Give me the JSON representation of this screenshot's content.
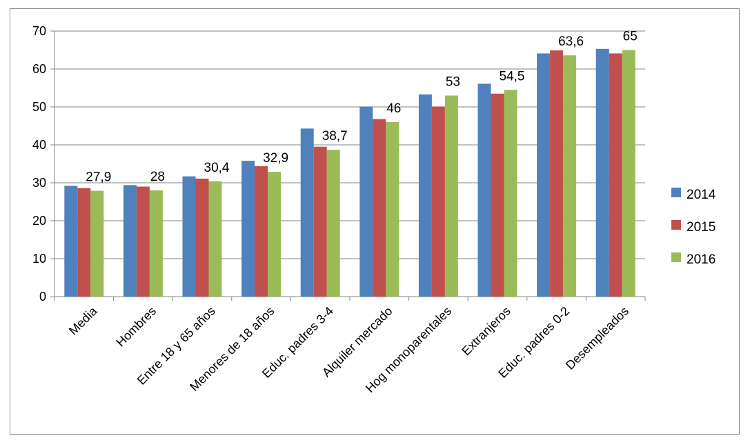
{
  "chart_data": {
    "type": "bar",
    "categories": [
      "Media",
      "Hombres",
      "Entre 18 y 65 años",
      "Menores de 18 años",
      "Educ. padres 3-4",
      "Alquiler mercado",
      "Hog monoparentales",
      "Extranjeros",
      "Educ. padres 0-2",
      "Desempleados"
    ],
    "series": [
      {
        "name": "2014",
        "color": "#4F81BD",
        "values": [
          29.2,
          29.4,
          31.7,
          35.8,
          44.3,
          50.1,
          53.3,
          56.1,
          64.1,
          65.3
        ]
      },
      {
        "name": "2015",
        "color": "#C0504D",
        "values": [
          28.6,
          29.0,
          31.1,
          34.4,
          39.5,
          46.8,
          50.1,
          53.5,
          64.9,
          64.1
        ]
      },
      {
        "name": "2016",
        "color": "#9BBB59",
        "values": [
          27.9,
          28.0,
          30.4,
          32.9,
          38.7,
          46.0,
          53.0,
          54.5,
          63.6,
          65.0
        ]
      }
    ],
    "data_labels": [
      "27,9",
      "28",
      "30,4",
      "32,9",
      "38,7",
      "46",
      "53",
      "54,5",
      "63,6",
      "65"
    ],
    "yticks": [
      "0",
      "10",
      "20",
      "30",
      "40",
      "50",
      "60",
      "70"
    ],
    "ylim": [
      0,
      70
    ],
    "grid": true,
    "legend_position": "right",
    "title": "",
    "xlabel": "",
    "ylabel": ""
  }
}
